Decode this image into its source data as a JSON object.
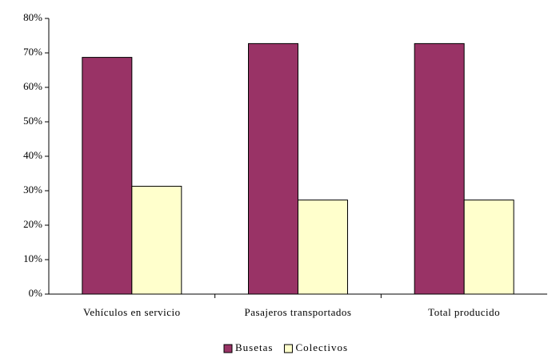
{
  "chart_data": {
    "type": "bar",
    "categories": [
      "Vehículos en servicio",
      "Pasajeros transportados",
      "Total producido"
    ],
    "series": [
      {
        "name": "Busetas",
        "color": "#993366",
        "values": [
          68.7,
          72.7,
          72.7
        ]
      },
      {
        "name": "Colectivos",
        "color": "#FFFFCC",
        "values": [
          31.3,
          27.3,
          27.3
        ]
      }
    ],
    "ylim": [
      0,
      80
    ],
    "yticks": [
      {
        "value": 0,
        "label": "0%"
      },
      {
        "value": 10,
        "label": "10%"
      },
      {
        "value": 20,
        "label": "20%"
      },
      {
        "value": 30,
        "label": "30%"
      },
      {
        "value": 40,
        "label": "40%"
      },
      {
        "value": 50,
        "label": "50%"
      },
      {
        "value": 60,
        "label": "60%"
      },
      {
        "value": 70,
        "label": "70%"
      },
      {
        "value": 80,
        "label": "80%"
      }
    ],
    "grid": false,
    "legend": "bottom"
  }
}
